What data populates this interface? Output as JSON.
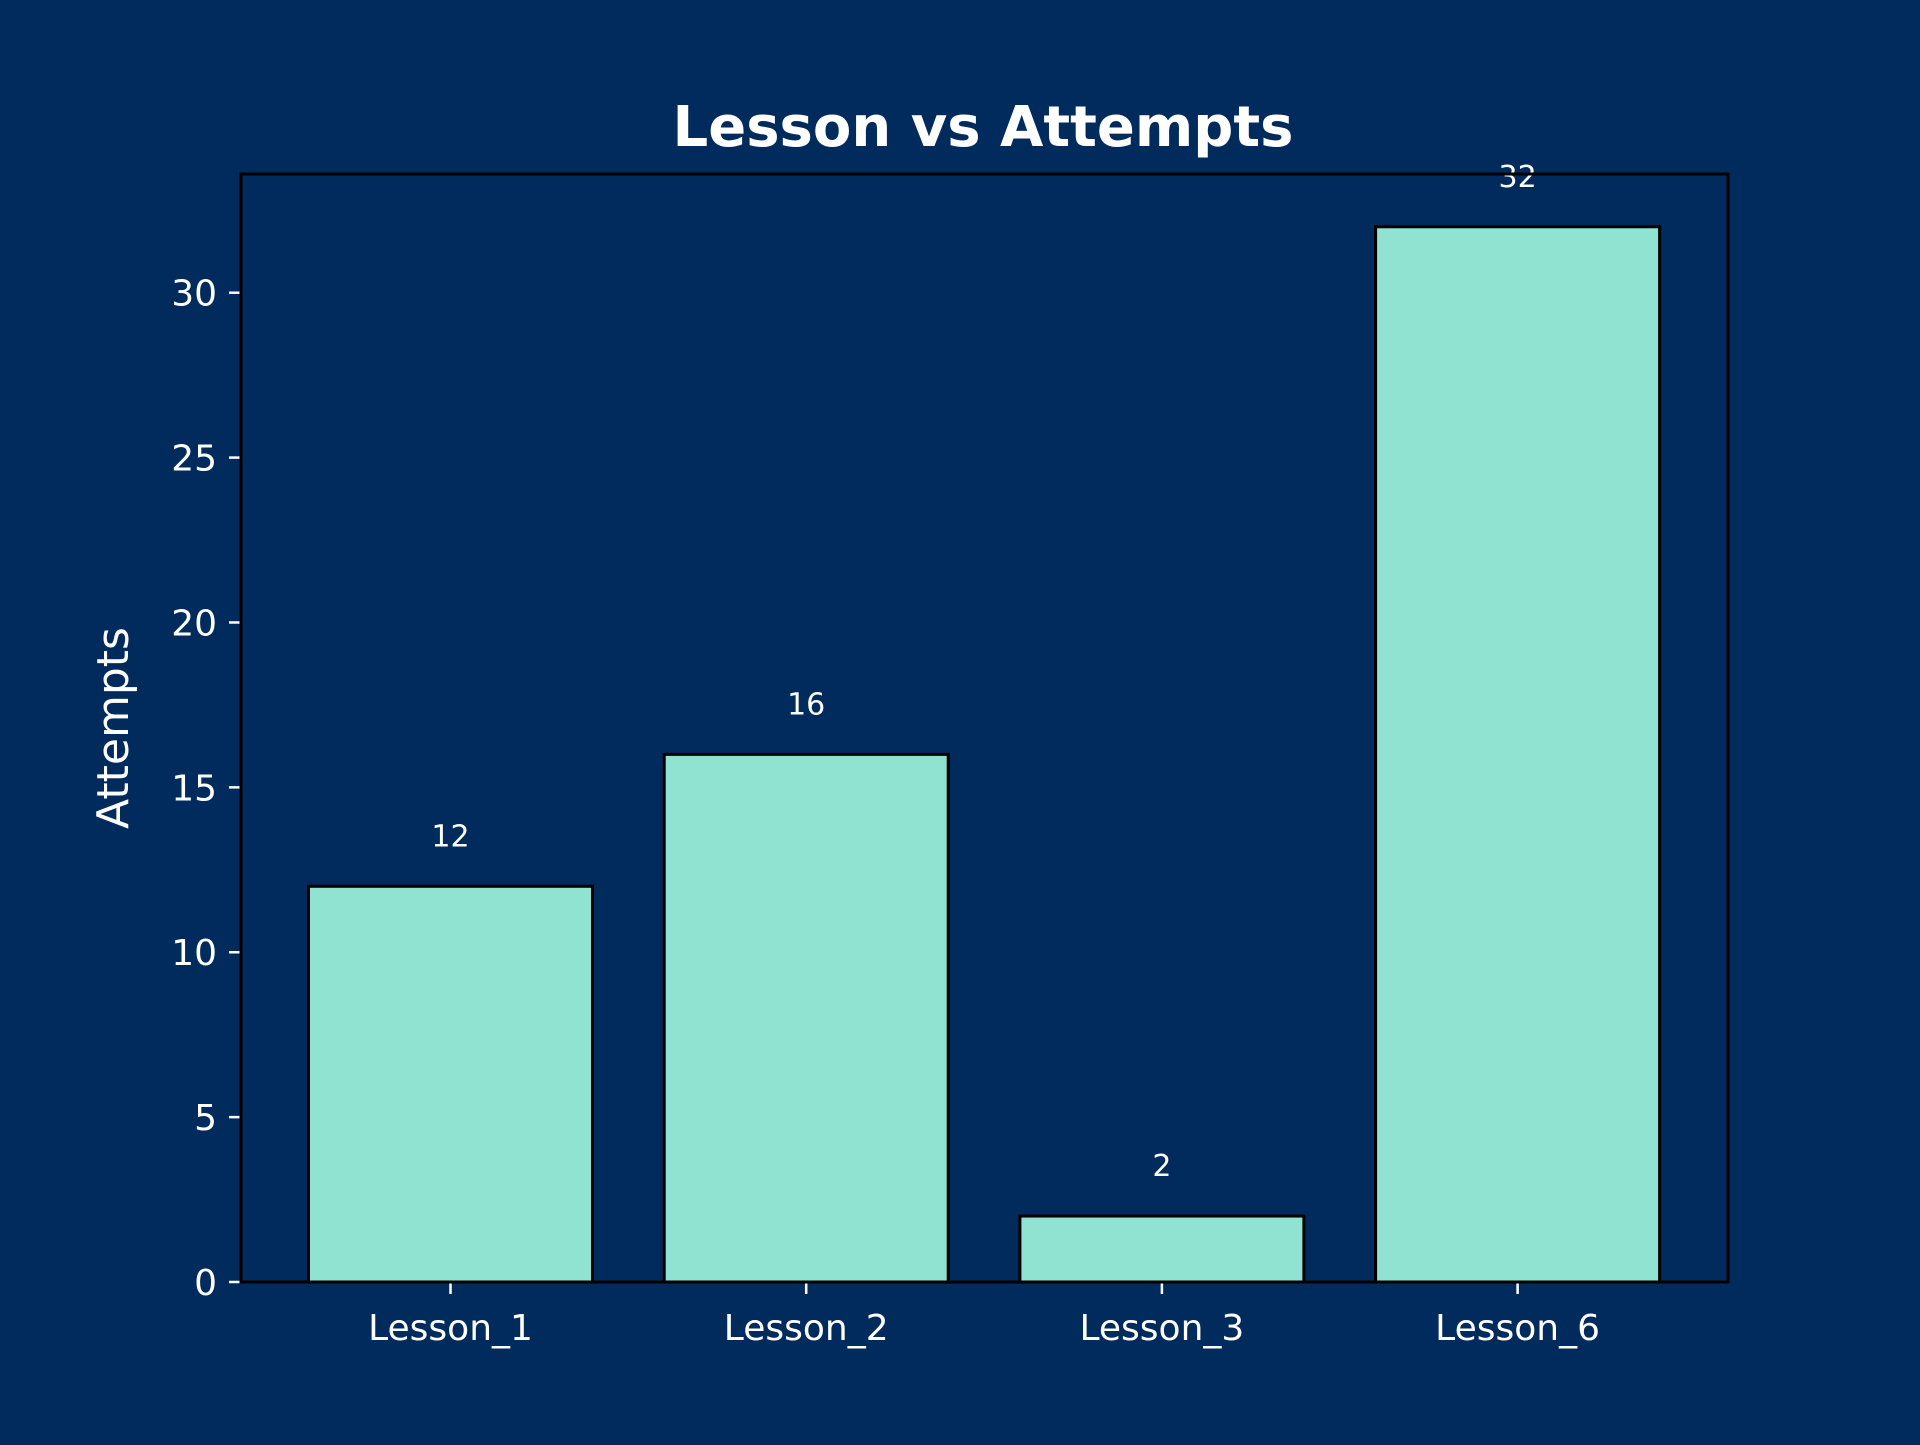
{
  "colors": {
    "background": "#002b5c",
    "bar_fill": "#91e3d1",
    "bar_edge": "#000000",
    "text": "#ffffff"
  },
  "chart_data": {
    "type": "bar",
    "title": "Lesson vs Attempts",
    "xlabel": "",
    "ylabel": "Attempts",
    "categories": [
      "Lesson_1",
      "Lesson_2",
      "Lesson_3",
      "Lesson_6"
    ],
    "values": [
      12,
      16,
      2,
      32
    ],
    "data_labels": [
      "12",
      "16",
      "2",
      "32"
    ],
    "ylim": [
      0,
      33.6
    ],
    "yticks": [
      0,
      5,
      10,
      15,
      20,
      25,
      30
    ],
    "ytick_labels": [
      "0",
      "5",
      "10",
      "15",
      "20",
      "25",
      "30"
    ],
    "grid": false,
    "legend": false
  }
}
